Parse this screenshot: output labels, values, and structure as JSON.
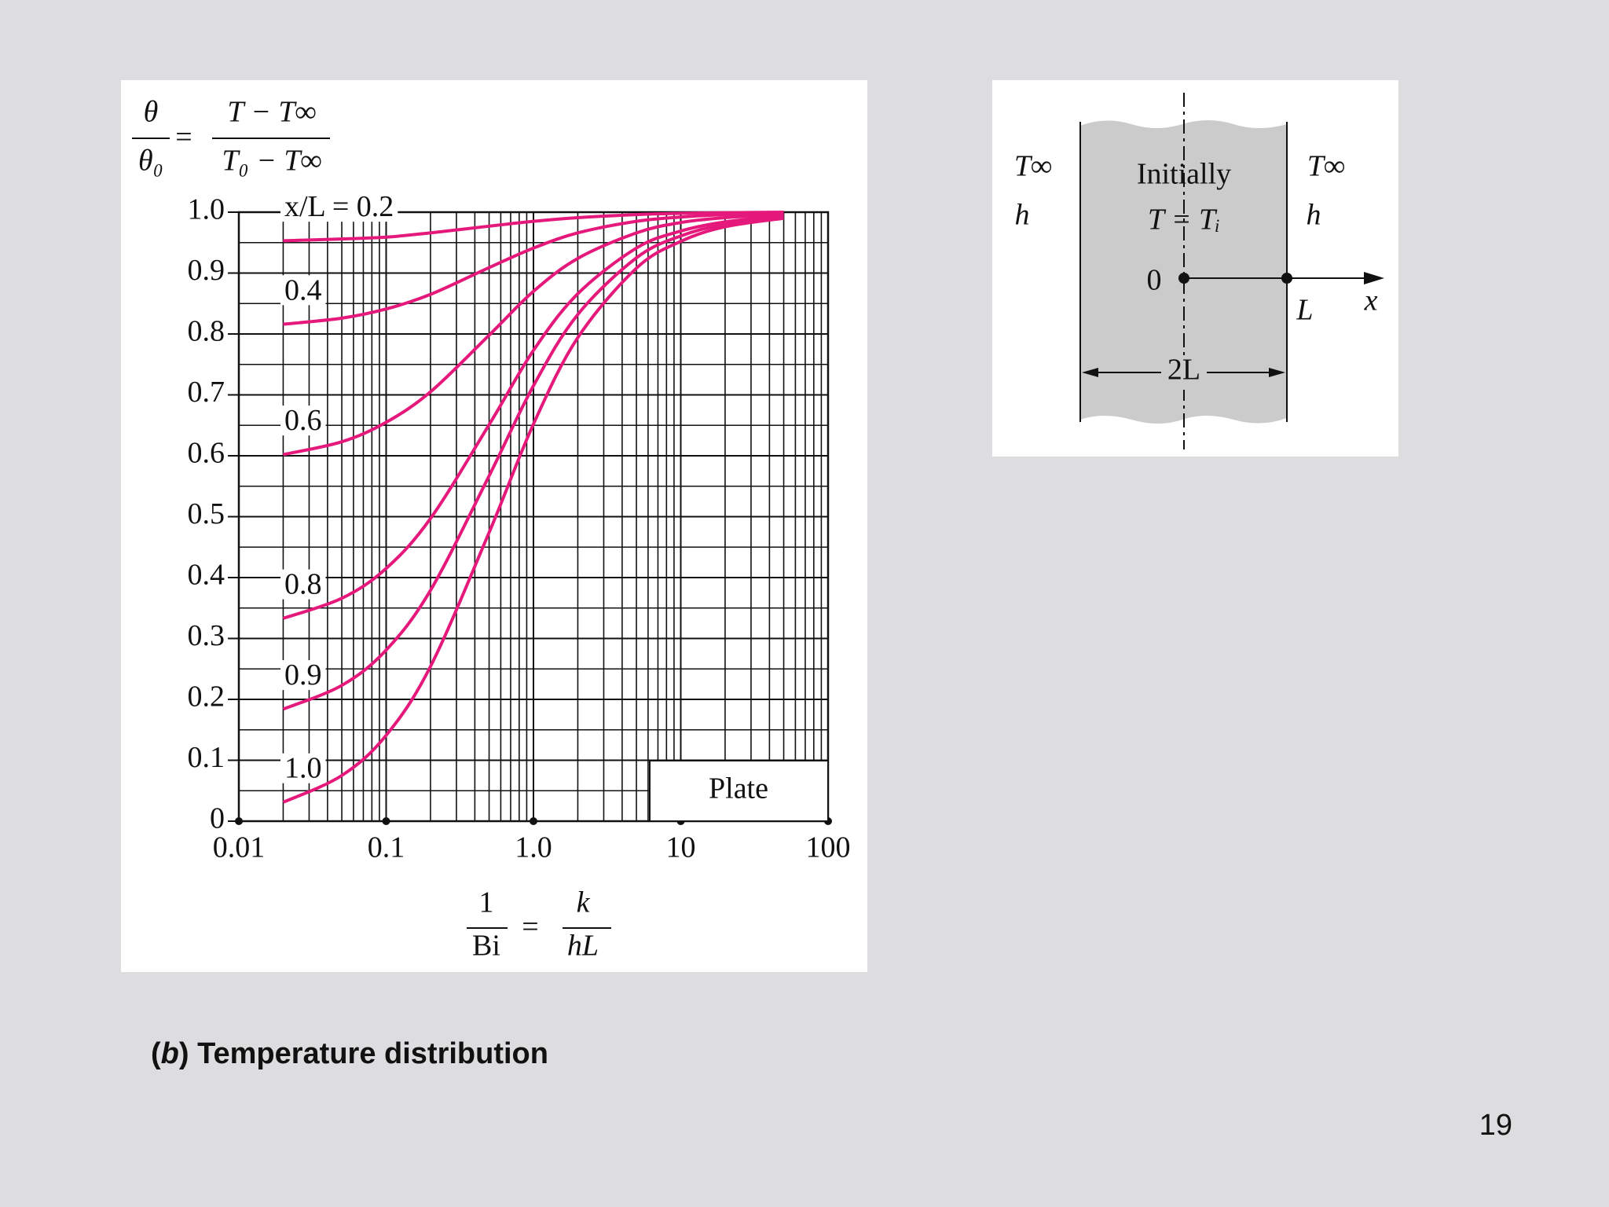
{
  "slide": {
    "caption": [
      "(",
      "b",
      ") Temperature distribution"
    ],
    "page_number": "19"
  },
  "chart_data": {
    "type": "line",
    "ylabel": {
      "lhs_num": "θ",
      "lhs_den": "θ₀",
      "equals": "=",
      "rhs_num": "T − T∞",
      "rhs_den": "T₀ − T∞"
    },
    "xlabel": {
      "lhs_num": "1",
      "lhs_den": "Bi",
      "equals": "=",
      "rhs_num": "k",
      "rhs_den": "hL"
    },
    "annotation": "Plate",
    "x": [
      0.02,
      0.05,
      0.1,
      0.2,
      0.5,
      1,
      2,
      5,
      10,
      20,
      50
    ],
    "series": [
      {
        "name": "x/L = 0.2",
        "color": "#e5197c",
        "values": [
          0.953,
          0.956,
          0.959,
          0.966,
          0.977,
          0.985,
          0.991,
          0.996,
          0.998,
          0.999,
          1.0
        ]
      },
      {
        "name": "0.4",
        "color": "#e5197c",
        "values": [
          0.816,
          0.826,
          0.841,
          0.865,
          0.909,
          0.941,
          0.966,
          0.985,
          0.992,
          0.996,
          0.998
        ]
      },
      {
        "name": "0.6",
        "color": "#e5197c",
        "values": [
          0.602,
          0.623,
          0.655,
          0.705,
          0.798,
          0.87,
          0.924,
          0.966,
          0.983,
          0.991,
          0.996
        ]
      },
      {
        "name": "0.8",
        "color": "#e5197c",
        "values": [
          0.333,
          0.366,
          0.415,
          0.497,
          0.651,
          0.773,
          0.866,
          0.941,
          0.969,
          0.984,
          0.994
        ]
      },
      {
        "name": "0.9",
        "color": "#e5197c",
        "values": [
          0.184,
          0.223,
          0.281,
          0.379,
          0.567,
          0.715,
          0.832,
          0.925,
          0.961,
          0.98,
          0.992
        ]
      },
      {
        "name": "1.0",
        "color": "#e5197c",
        "values": [
          0.031,
          0.075,
          0.141,
          0.254,
          0.474,
          0.652,
          0.794,
          0.908,
          0.952,
          0.976,
          0.99
        ]
      }
    ],
    "xscale": "log",
    "xlim": [
      0.01,
      100
    ],
    "xticks": [
      0.01,
      0.1,
      {
        "value": 1,
        "label": "1.0"
      },
      10,
      100
    ],
    "ylim": [
      0,
      1
    ],
    "yticks": [
      0,
      0.1,
      0.2,
      0.3,
      0.4,
      0.5,
      0.6,
      0.7,
      0.8,
      0.9,
      {
        "value": 1,
        "label": "1.0"
      }
    ],
    "grid": true,
    "minor_grid": true
  },
  "diagram": {
    "left_fluid": [
      "T∞",
      "h"
    ],
    "right_fluid": [
      "T∞",
      "h"
    ],
    "body": [
      "Initially",
      "T = Tᵢ"
    ],
    "origin": "0",
    "end": "L",
    "axis": "x",
    "width": "2L"
  }
}
